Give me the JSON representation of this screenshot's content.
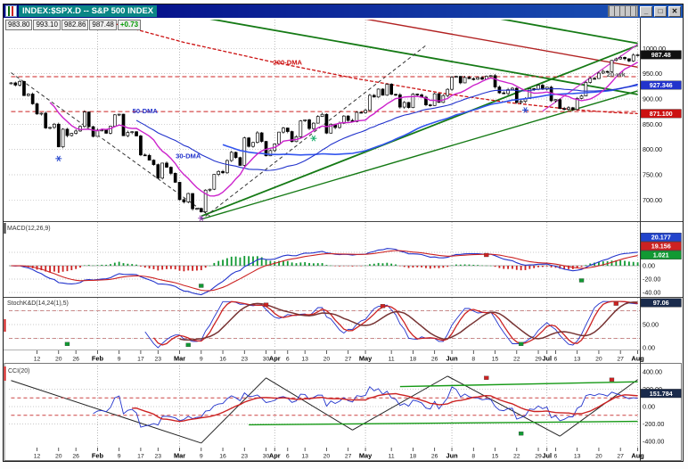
{
  "window": {
    "title": "INDEX:$SPX.D -- S&P 500 INDEX",
    "buttons": {
      "minimize": "_",
      "maximize": "□",
      "close": "✕"
    }
  },
  "quote": {
    "open": "983.80",
    "high": "993.10",
    "low": "982.86",
    "last": "987.48",
    "change": "+0.73",
    "change_color": "#009900"
  },
  "colors": {
    "titlebar": "#000080",
    "title_highlight": "#0a8686",
    "ma10": "#cc22cc",
    "ma30": "#2233cc",
    "ma50": "#3355ee",
    "dma200": "#cc1111",
    "trend_green": "#157a15",
    "up_candle": "#ffffff",
    "down_candle": "#000000"
  },
  "chart_data": {
    "type": "candlestick+indicators",
    "symbol": "$SPX",
    "timeframe": "daily",
    "closes": [
      931.8,
      927.5,
      934.7,
      906.7,
      909.7,
      890.4,
      870.3,
      871.8,
      842.6,
      843.7,
      850.1,
      805.2,
      840.2,
      827.5,
      831.9,
      836.6,
      845.7,
      874.1,
      845.1,
      825.9,
      838.5,
      838.5,
      832.2,
      845.9,
      868.6,
      869.9,
      827.2,
      833.7,
      835.2,
      826.8,
      789.2,
      788.4,
      778.9,
      770.1,
      743.3,
      773.1,
      764.9,
      752.8,
      735.1,
      700.8,
      696.3,
      712.9,
      682.6,
      683.4,
      676.5,
      719.6,
      721.4,
      750.7,
      756.6,
      753.9,
      778.1,
      794.4,
      784.0,
      768.5,
      822.9,
      806.1,
      814.0,
      832.9,
      816.0,
      787.5,
      797.9,
      811.1,
      834.4,
      842.5,
      835.5,
      815.6,
      825.2,
      856.6,
      858.7,
      841.5,
      852.1,
      865.3,
      869.6,
      832.4,
      850.1,
      843.5,
      851.9,
      866.2,
      857.5,
      855.2,
      873.6,
      872.8,
      877.5,
      907.2,
      903.8,
      919.5,
      907.4,
      929.2,
      909.2,
      908.3,
      883.9,
      893.1,
      882.9,
      909.7,
      908.1,
      903.5,
      888.3,
      887.0,
      910.3,
      893.1,
      906.8,
      919.1,
      942.9,
      944.7,
      931.8,
      942.5,
      940.1,
      939.1,
      942.4,
      939.2,
      944.9,
      946.2,
      923.7,
      912.0,
      910.7,
      918.4,
      921.2,
      893.0,
      895.1,
      900.9,
      920.3,
      918.9,
      927.2,
      919.3,
      923.3,
      896.4,
      898.7,
      881.0,
      879.6,
      882.7,
      879.1,
      901.1,
      905.8,
      932.7,
      940.7,
      940.4,
      951.1,
      954.6,
      954.1,
      976.3,
      979.3,
      982.2,
      979.6,
      975.2,
      986.8,
      987.5
    ],
    "x_ticks": [
      {
        "b": 6,
        "t": "12"
      },
      {
        "b": 11,
        "t": "20"
      },
      {
        "b": 15,
        "t": "26"
      },
      {
        "b": 20,
        "t": "Feb",
        "m": true
      },
      {
        "b": 25,
        "t": "9"
      },
      {
        "b": 30,
        "t": "17"
      },
      {
        "b": 34,
        "t": "23"
      },
      {
        "b": 39,
        "t": "Mar",
        "m": true
      },
      {
        "b": 44,
        "t": "9"
      },
      {
        "b": 49,
        "t": "16"
      },
      {
        "b": 54,
        "t": "23"
      },
      {
        "b": 59,
        "t": "30"
      },
      {
        "b": 61,
        "t": "Apr",
        "m": true
      },
      {
        "b": 64,
        "t": "6"
      },
      {
        "b": 68,
        "t": "13"
      },
      {
        "b": 73,
        "t": "20"
      },
      {
        "b": 78,
        "t": "27"
      },
      {
        "b": 82,
        "t": "May",
        "m": true
      },
      {
        "b": 88,
        "t": "11"
      },
      {
        "b": 93,
        "t": "18"
      },
      {
        "b": 98,
        "t": "26"
      },
      {
        "b": 102,
        "t": "Jun",
        "m": true
      },
      {
        "b": 107,
        "t": "8"
      },
      {
        "b": 112,
        "t": "15"
      },
      {
        "b": 117,
        "t": "22"
      },
      {
        "b": 122,
        "t": "29"
      },
      {
        "b": 124,
        "t": "Jul",
        "m": true
      },
      {
        "b": 126,
        "t": "6"
      },
      {
        "b": 131,
        "t": "13"
      },
      {
        "b": 136,
        "t": "20"
      },
      {
        "b": 141,
        "t": "27"
      },
      {
        "b": 145,
        "t": "Aug",
        "m": true
      }
    ],
    "price_panel": {
      "domain": [
        660,
        1057
      ],
      "axis_ticks": [
        {
          "v": 1000,
          "label": "1000.00"
        },
        {
          "v": 950,
          "label": "950.00"
        },
        {
          "v": 900,
          "label": "900.00"
        },
        {
          "v": 850,
          "label": "850.00"
        },
        {
          "v": 800,
          "label": "800.00"
        },
        {
          "v": 750,
          "label": "750.00"
        },
        {
          "v": 700,
          "label": "700.00"
        }
      ],
      "badges": [
        {
          "v": 987.48,
          "label": "987.48",
          "bg": "#111111"
        },
        {
          "v": 927.346,
          "label": "927.346",
          "bg": "#2233cc"
        },
        {
          "v": 871.1,
          "label": "871.100",
          "bg": "#cc1111"
        }
      ],
      "ma_labels": [
        {
          "b": 64,
          "p": 968,
          "t": "200-DMA",
          "c": "#cc1111"
        },
        {
          "b": 31,
          "p": 872,
          "t": "50-DMA",
          "c": "#2233cc"
        },
        {
          "b": 41,
          "p": 783,
          "t": "30-DMA",
          "c": "#2233cc"
        },
        {
          "b": 140,
          "p": 944,
          "t": "20-wk",
          "c": "#555555"
        }
      ],
      "dma200": [
        [
          0,
          1105
        ],
        [
          20,
          1058
        ],
        [
          40,
          1012
        ],
        [
          60,
          974
        ],
        [
          80,
          940
        ],
        [
          100,
          911
        ],
        [
          115,
          893
        ],
        [
          130,
          879
        ],
        [
          140,
          873
        ],
        [
          145,
          871
        ]
      ],
      "trendlines": [
        {
          "p": [
            0,
            1128,
            145,
            909
          ],
          "c": "#157a15",
          "w": 1.8
        },
        {
          "p": [
            60,
            1140,
            145,
            1010
          ],
          "c": "#157a15",
          "w": 1.8
        },
        {
          "p": [
            20,
            1152,
            145,
            963
          ],
          "c": "#b22222",
          "w": 1.4
        },
        {
          "p": [
            44,
            668,
            145,
            1006
          ],
          "c": "#157a15",
          "w": 1.8
        },
        {
          "p": [
            44,
            662,
            145,
            916
          ],
          "c": "#157a15",
          "w": 1.4
        },
        {
          "p": [
            0,
            952,
            46,
            668
          ],
          "c": "#333333",
          "w": 1,
          "d": "4,3"
        },
        {
          "p": [
            45,
            668,
            96,
            1006
          ],
          "c": "#333333",
          "w": 1,
          "d": "4,3"
        },
        {
          "p": [
            0,
            944,
            145,
            944
          ],
          "c": "#cc2222",
          "w": 1,
          "d": "5,3"
        },
        {
          "p": [
            0,
            875,
            145,
            875
          ],
          "c": "#cc2222",
          "w": 1,
          "d": "5,3"
        },
        {
          "p": [
            123,
            876,
            145,
            1008
          ],
          "c": "#cc33cc",
          "w": 1.2
        }
      ],
      "stars": [
        {
          "b": 11,
          "p": 782,
          "c": "#2244cc"
        },
        {
          "b": 44,
          "p": 664,
          "c": "#8833aa"
        },
        {
          "b": 70,
          "p": 822,
          "c": "#11aa66"
        },
        {
          "b": 119,
          "p": 878,
          "c": "#2244cc"
        }
      ]
    },
    "macd_panel": {
      "label": "MACD(12,26,9)",
      "axis_ticks": [
        {
          "v": 0,
          "label": "0.00"
        },
        {
          "v": -20,
          "label": "-20.00"
        },
        {
          "v": -40,
          "label": "-40.00"
        }
      ],
      "badges": [
        {
          "label": "20.177",
          "bg": "#2244cc"
        },
        {
          "label": "19.156",
          "bg": "#cc2222"
        },
        {
          "label": "1.021",
          "bg": "#119933"
        }
      ],
      "markers": [
        {
          "b": 44,
          "v": -30,
          "c": "#119933"
        },
        {
          "b": 110,
          "v": 16,
          "c": "#cc2222"
        },
        {
          "b": 132,
          "v": -22,
          "c": "#119933"
        }
      ]
    },
    "stoch_panel": {
      "label": "StochK&D(14,24(1),5)",
      "axis_ticks": [
        {
          "v": 50,
          "label": "50.00"
        },
        {
          "v": 0,
          "label": "0.00"
        }
      ],
      "badge": {
        "v": 97.06,
        "label": "97.06",
        "bg": "#1a2b4c"
      },
      "markers": [
        {
          "b": 13,
          "v": 8,
          "c": "#119933"
        },
        {
          "b": 41,
          "v": 6,
          "c": "#119933"
        },
        {
          "b": 59,
          "v": 93,
          "c": "#cc2222"
        },
        {
          "b": 86,
          "v": 90,
          "c": "#cc2222"
        },
        {
          "b": 118,
          "v": 8,
          "c": "#119933"
        },
        {
          "b": 140,
          "v": 95,
          "c": "#cc2222"
        }
      ]
    },
    "cci_panel": {
      "label": "CCI(20)",
      "axis_ticks": [
        {
          "v": 400,
          "label": "400.00"
        },
        {
          "v": 200,
          "label": "200.00"
        },
        {
          "v": 0,
          "label": "0.00"
        },
        {
          "v": -200,
          "label": "-200.00"
        },
        {
          "v": -400,
          "label": "-400.00"
        }
      ],
      "badge": {
        "v": 151.784,
        "label": "151.784",
        "bg": "#1a2b4c"
      },
      "trendlines": [
        {
          "p": [
            0,
            300,
            44,
            -420
          ],
          "c": "#222222",
          "w": 1
        },
        {
          "p": [
            44,
            -420,
            59,
            330
          ],
          "c": "#222222",
          "w": 1
        },
        {
          "p": [
            59,
            330,
            79,
            -270
          ],
          "c": "#222222",
          "w": 1
        },
        {
          "p": [
            79,
            -270,
            101,
            350
          ],
          "c": "#222222",
          "w": 1
        },
        {
          "p": [
            101,
            350,
            127,
            -340
          ],
          "c": "#222222",
          "w": 1
        },
        {
          "p": [
            127,
            -340,
            145,
            310
          ],
          "c": "#222222",
          "w": 1
        },
        {
          "p": [
            55,
            -210,
            145,
            -170
          ],
          "c": "#159915",
          "w": 1.4
        },
        {
          "p": [
            90,
            230,
            145,
            285
          ],
          "c": "#159915",
          "w": 1.4
        },
        {
          "p": [
            0,
            100,
            145,
            100
          ],
          "c": "#cc4444",
          "w": 0.9,
          "d": "4,3"
        },
        {
          "p": [
            0,
            -100,
            145,
            -100
          ],
          "c": "#cc4444",
          "w": 0.9,
          "d": "4,3"
        }
      ],
      "markers": [
        {
          "b": 110,
          "v": 330,
          "c": "#cc2222"
        },
        {
          "b": 118,
          "v": -310,
          "c": "#119933"
        },
        {
          "b": 139,
          "v": 310,
          "c": "#cc2222"
        }
      ]
    }
  }
}
